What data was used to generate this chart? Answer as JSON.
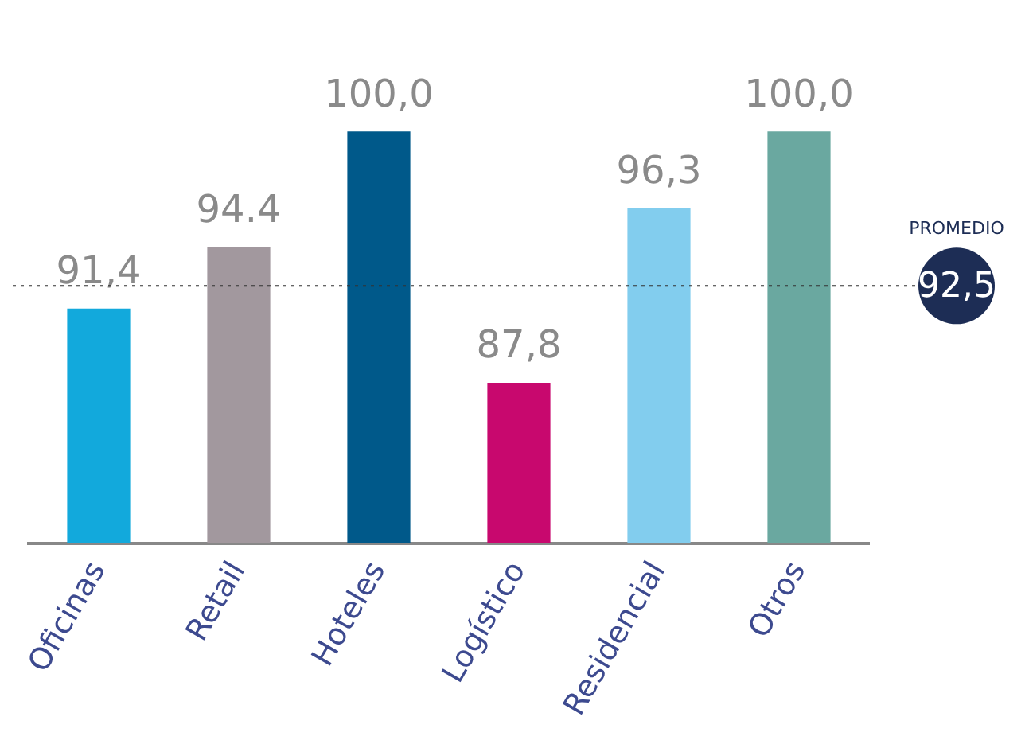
{
  "chart_data": {
    "type": "bar",
    "categories": [
      "Oficinas",
      "Retail",
      "Hoteles",
      "Logístico",
      "Residencial",
      "Otros"
    ],
    "values": [
      91.4,
      94.4,
      100,
      87.8,
      96.3,
      100
    ],
    "value_labels": [
      "91,4",
      "94.4",
      "100,0",
      "87,8",
      "96,3",
      "100,0"
    ],
    "colors": [
      "#12a9dc",
      "#a2989e",
      "#00598a",
      "#c8086e",
      "#82cdee",
      "#6aa8a0"
    ],
    "tick_labels": "x",
    "grid": false,
    "legend": false,
    "ref_lines": [
      {
        "axis": "y",
        "value": 92.5,
        "label": "PROMEDIO",
        "color": "#333333",
        "line_style": "dotted"
      }
    ],
    "annotations": [
      "92,5"
    ]
  }
}
